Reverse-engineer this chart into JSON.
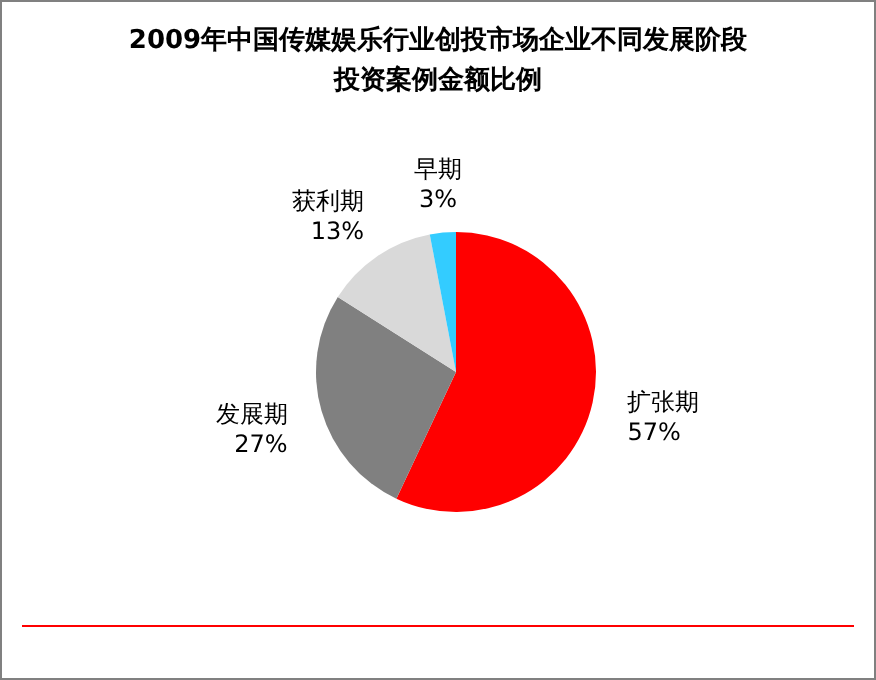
{
  "chart_data": {
    "type": "pie",
    "title": "2009年中国传媒娱乐行业创投市场企业不同发展阶段投资案例金额比例",
    "categories": [
      "扩张期",
      "发展期",
      "获利期",
      "早期"
    ],
    "values": [
      57,
      27,
      13,
      3
    ],
    "colors": [
      "#ff0000",
      "#808080",
      "#d9d9d9",
      "#33ccff"
    ],
    "value_labels": [
      "57%",
      "27%",
      "13%",
      "3%"
    ]
  }
}
